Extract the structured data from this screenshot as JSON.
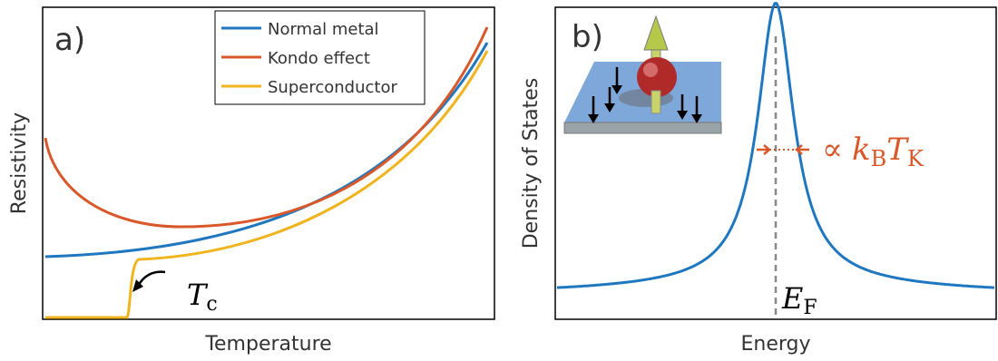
{
  "panel_a": {
    "label": "a)",
    "y_axis_title": "Resistivity",
    "x_axis_title": "Temperature",
    "legend": [
      "Normal metal",
      "Kondo effect",
      "Superconductor"
    ],
    "annotation": {
      "symbol": "T",
      "subscript": "c"
    }
  },
  "panel_b": {
    "label": "b)",
    "y_axis_title": "Density of States",
    "x_axis_title": "Energy",
    "fermi_label": {
      "symbol": "E",
      "subscript": "F"
    },
    "width_label": {
      "prefix": "∝",
      "symbol1": "k",
      "subscript1": "B",
      "symbol2": "T",
      "subscript2": "K"
    }
  }
}
